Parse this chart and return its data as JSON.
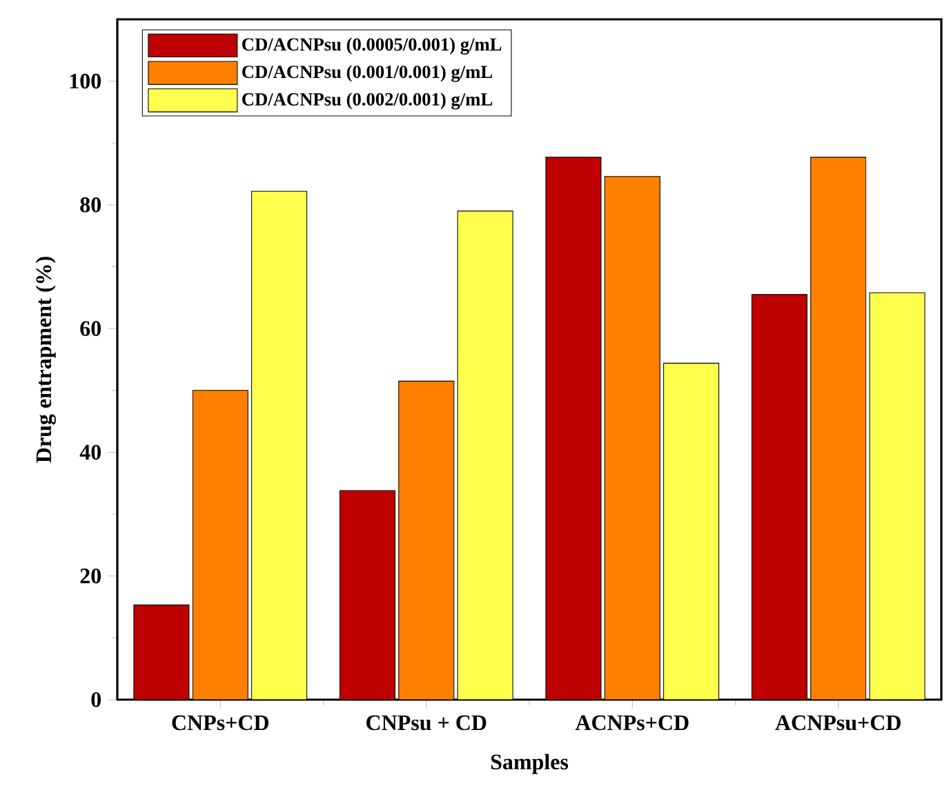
{
  "chart_data": {
    "type": "bar",
    "xlabel": "Samples",
    "ylabel": "Drug entrapment (%)",
    "categories": [
      "CNPs+CD",
      "CNPsu + CD",
      "ACNPs+CD",
      "ACNPsu+CD"
    ],
    "series": [
      {
        "name": "CD/ACNPsu (0.0005/0.001) g/mL",
        "color": "#bf0000",
        "values": [
          15.3,
          33.8,
          87.7,
          65.5
        ]
      },
      {
        "name": "CD/ACNPsu (0.001/0.001) g/mL",
        "color": "#ff8000",
        "values": [
          50,
          51.5,
          84.6,
          87.7
        ]
      },
      {
        "name": "CD/ACNPsu (0.002/0.001) g/mL",
        "color": "#ffff4d",
        "values": [
          82.2,
          79,
          54.4,
          65.8
        ]
      }
    ],
    "ylim": [
      0,
      110
    ],
    "yticks": [
      0,
      20,
      40,
      60,
      80,
      100
    ],
    "legend": "top left"
  }
}
